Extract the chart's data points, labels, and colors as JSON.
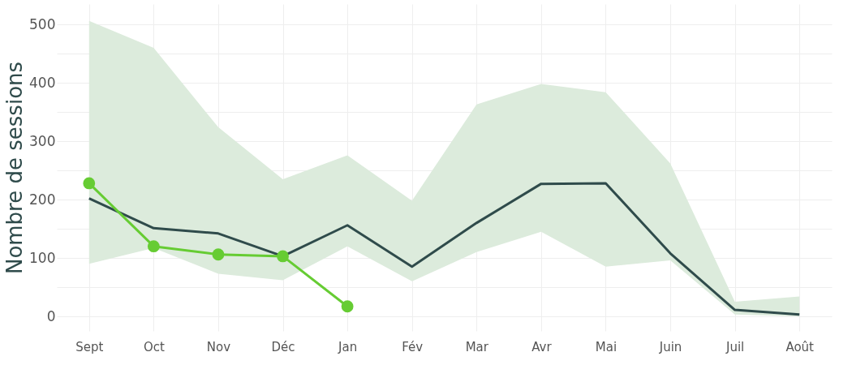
{
  "chart_data": {
    "type": "line",
    "ylabel": "Nombre de sessions",
    "categories": [
      "Sept",
      "Oct",
      "Nov",
      "Déc",
      "Jan",
      "Fév",
      "Mar",
      "Avr",
      "Mai",
      "Juin",
      "Juil",
      "Août"
    ],
    "series": [
      {
        "color": "#2f4b4b",
        "marker": "none",
        "values": [
          202,
          151,
          142,
          103,
          156,
          85,
          160,
          227,
          228,
          108,
          11,
          3
        ],
        "lower": [
          90,
          117,
          73,
          62,
          120,
          60,
          110,
          145,
          85,
          96,
          3,
          0
        ],
        "upper": [
          506,
          460,
          324,
          235,
          276,
          198,
          363,
          398,
          384,
          262,
          25,
          34
        ]
      },
      {
        "color": "#66cc33",
        "marker": "circle",
        "values": [
          228,
          120,
          106,
          103,
          17,
          null,
          null,
          null,
          null,
          null,
          null,
          null
        ]
      }
    ],
    "ylim": [
      -25,
      535
    ],
    "yticks": [
      0,
      {
        "value": 50,
        "label": null
      },
      100,
      {
        "value": 150,
        "label": null
      },
      200,
      {
        "value": 250,
        "label": null
      },
      300,
      {
        "value": 350,
        "label": null
      },
      400,
      {
        "value": 450,
        "label": null
      },
      500
    ],
    "grid": true,
    "line_style": "solid"
  }
}
